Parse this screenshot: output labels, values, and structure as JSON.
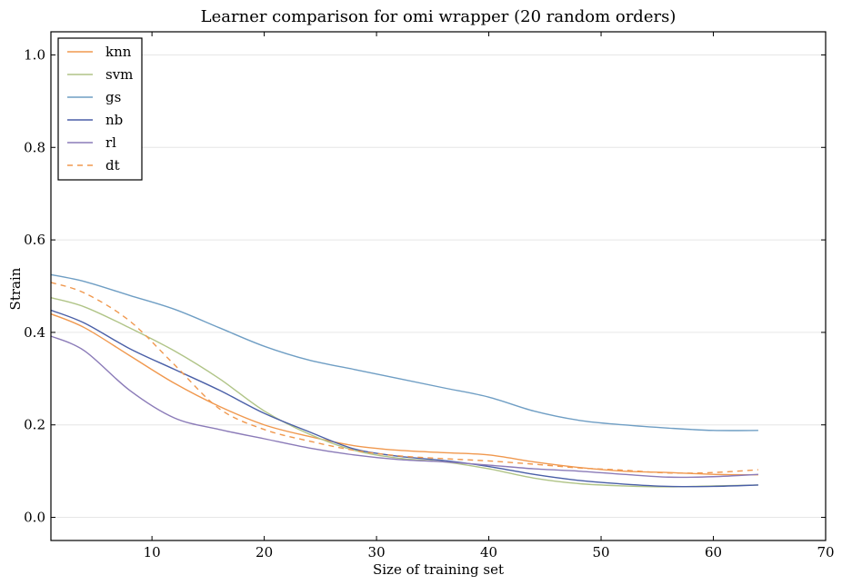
{
  "chart_data": {
    "type": "line",
    "title": "Learner comparison for omi wrapper (20 random orders)",
    "xlabel": "Size of training set",
    "ylabel": "Strain",
    "xlim": [
      1,
      70
    ],
    "ylim": [
      -0.05,
      1.05
    ],
    "xticks": [
      10,
      20,
      30,
      40,
      50,
      60,
      70
    ],
    "yticks": [
      0.0,
      0.2,
      0.4,
      0.6,
      0.8,
      1.0
    ],
    "xtick_labels": [
      "10",
      "20",
      "30",
      "40",
      "50",
      "60",
      "70"
    ],
    "ytick_labels": [
      "0.0",
      "0.2",
      "0.4",
      "0.6",
      "0.8",
      "1.0"
    ],
    "grid": "horizontal",
    "legend_position": "top-left",
    "x": [
      1,
      4,
      8,
      12,
      16,
      20,
      24,
      28,
      32,
      36,
      40,
      44,
      48,
      52,
      56,
      60,
      64
    ],
    "series": [
      {
        "name": "knn",
        "color": "#f0984e",
        "dash": "solid",
        "values": [
          0.44,
          0.41,
          0.35,
          0.29,
          0.24,
          0.2,
          0.175,
          0.155,
          0.145,
          0.14,
          0.135,
          0.12,
          0.108,
          0.1,
          0.097,
          0.093,
          0.092
        ]
      },
      {
        "name": "svm",
        "color": "#b0c487",
        "dash": "solid",
        "values": [
          0.475,
          0.455,
          0.41,
          0.36,
          0.3,
          0.23,
          0.18,
          0.145,
          0.128,
          0.12,
          0.105,
          0.085,
          0.073,
          0.068,
          0.066,
          0.068,
          0.07
        ]
      },
      {
        "name": "gs",
        "color": "#6f9ec4",
        "dash": "solid",
        "values": [
          0.525,
          0.51,
          0.48,
          0.45,
          0.41,
          0.37,
          0.34,
          0.32,
          0.3,
          0.28,
          0.26,
          0.23,
          0.21,
          0.2,
          0.193,
          0.188,
          0.188
        ]
      },
      {
        "name": "nb",
        "color": "#4a5fa7",
        "dash": "solid",
        "values": [
          0.448,
          0.42,
          0.365,
          0.32,
          0.275,
          0.225,
          0.185,
          0.148,
          0.132,
          0.123,
          0.11,
          0.093,
          0.08,
          0.072,
          0.067,
          0.067,
          0.07
        ]
      },
      {
        "name": "rl",
        "color": "#8b7bb8",
        "dash": "solid",
        "values": [
          0.392,
          0.36,
          0.275,
          0.215,
          0.19,
          0.17,
          0.15,
          0.135,
          0.125,
          0.12,
          0.113,
          0.105,
          0.1,
          0.093,
          0.087,
          0.088,
          0.093
        ]
      },
      {
        "name": "dt",
        "color": "#f0984e",
        "dash": "dashed",
        "values": [
          0.508,
          0.485,
          0.425,
          0.33,
          0.235,
          0.19,
          0.165,
          0.145,
          0.133,
          0.127,
          0.122,
          0.115,
          0.107,
          0.102,
          0.096,
          0.097,
          0.103
        ]
      }
    ]
  }
}
